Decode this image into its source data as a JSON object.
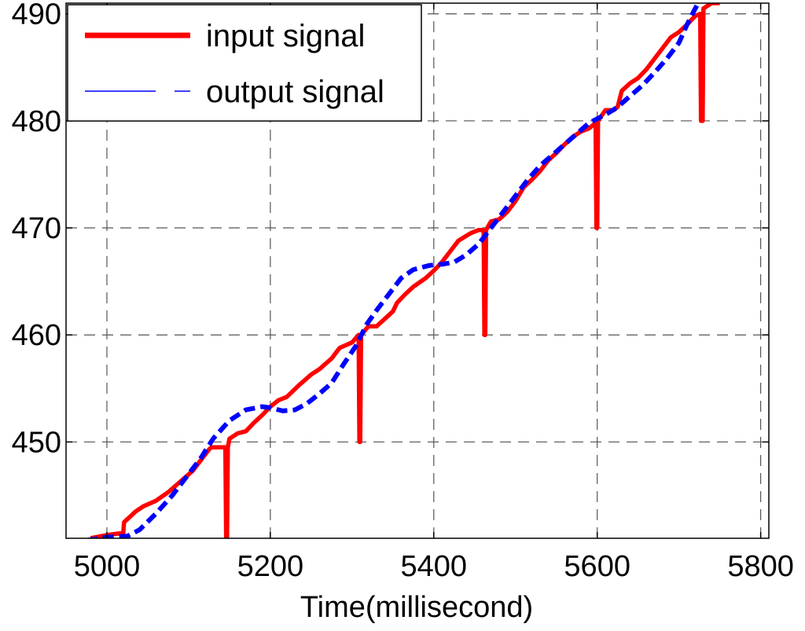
{
  "chart_data": {
    "type": "line",
    "title": "",
    "xlabel": "Time(millisecond)",
    "ylabel": "",
    "xlim": [
      4950,
      5810
    ],
    "ylim": [
      441,
      491
    ],
    "xticks": [
      5000,
      5200,
      5400,
      5600,
      5800
    ],
    "yticks": [
      450,
      460,
      470,
      480,
      490
    ],
    "grid": true,
    "legend_position": "top-left",
    "series": [
      {
        "name": "input signal",
        "color": "#ff0000",
        "style": "solid",
        "points": [
          [
            4980,
            441.0
          ],
          [
            5000,
            441.3
          ],
          [
            5020,
            441.5
          ],
          [
            5021,
            442.5
          ],
          [
            5035,
            443.5
          ],
          [
            5045,
            444.0
          ],
          [
            5060,
            444.5
          ],
          [
            5075,
            445.3
          ],
          [
            5090,
            446.3
          ],
          [
            5105,
            447.3
          ],
          [
            5115,
            448.3
          ],
          [
            5125,
            449.3
          ],
          [
            5128,
            449.5
          ],
          [
            5145,
            449.5
          ],
          [
            5146,
            441.0
          ],
          [
            5147,
            441.0
          ],
          [
            5148,
            449.5
          ],
          [
            5150,
            450.3
          ],
          [
            5160,
            450.8
          ],
          [
            5170,
            451.0
          ],
          [
            5180,
            451.8
          ],
          [
            5190,
            452.5
          ],
          [
            5200,
            453.3
          ],
          [
            5210,
            453.9
          ],
          [
            5220,
            454.2
          ],
          [
            5235,
            455.3
          ],
          [
            5250,
            456.3
          ],
          [
            5260,
            456.8
          ],
          [
            5275,
            457.8
          ],
          [
            5285,
            458.8
          ],
          [
            5300,
            459.3
          ],
          [
            5308,
            460.0
          ],
          [
            5309,
            450.0
          ],
          [
            5310,
            450.0
          ],
          [
            5311,
            460.0
          ],
          [
            5320,
            460.8
          ],
          [
            5330,
            460.8
          ],
          [
            5340,
            461.5
          ],
          [
            5350,
            462.2
          ],
          [
            5355,
            463.0
          ],
          [
            5365,
            463.8
          ],
          [
            5375,
            464.5
          ],
          [
            5390,
            465.3
          ],
          [
            5400,
            466.0
          ],
          [
            5410,
            466.8
          ],
          [
            5420,
            467.8
          ],
          [
            5430,
            468.8
          ],
          [
            5445,
            469.5
          ],
          [
            5455,
            469.8
          ],
          [
            5461,
            469.8
          ],
          [
            5462,
            460.0
          ],
          [
            5463,
            460.0
          ],
          [
            5464,
            469.8
          ],
          [
            5470,
            470.6
          ],
          [
            5480,
            470.8
          ],
          [
            5490,
            471.5
          ],
          [
            5500,
            472.5
          ],
          [
            5510,
            473.8
          ],
          [
            5520,
            474.5
          ],
          [
            5530,
            475.3
          ],
          [
            5540,
            476.3
          ],
          [
            5550,
            477.0
          ],
          [
            5560,
            477.8
          ],
          [
            5570,
            478.5
          ],
          [
            5580,
            479.0
          ],
          [
            5590,
            479.3
          ],
          [
            5598,
            479.8
          ],
          [
            5599,
            470.0
          ],
          [
            5600,
            470.0
          ],
          [
            5601,
            480.0
          ],
          [
            5610,
            481.0
          ],
          [
            5620,
            481.0
          ],
          [
            5625,
            481.3
          ],
          [
            5630,
            482.8
          ],
          [
            5640,
            483.5
          ],
          [
            5650,
            484.0
          ],
          [
            5660,
            484.8
          ],
          [
            5670,
            485.8
          ],
          [
            5680,
            486.8
          ],
          [
            5690,
            487.8
          ],
          [
            5700,
            488.3
          ],
          [
            5710,
            489.0
          ],
          [
            5720,
            489.8
          ],
          [
            5726,
            490.0
          ],
          [
            5727,
            480.0
          ],
          [
            5729,
            480.0
          ],
          [
            5730,
            490.5
          ],
          [
            5740,
            491.0
          ],
          [
            5750,
            491.0
          ]
        ]
      },
      {
        "name": "output signal",
        "color": "#0000ff",
        "style": "dashed",
        "points": [
          [
            4975,
            440.8
          ],
          [
            5000,
            441.1
          ],
          [
            5025,
            441.2
          ],
          [
            5040,
            441.8
          ],
          [
            5060,
            443.3
          ],
          [
            5080,
            445.0
          ],
          [
            5100,
            447.0
          ],
          [
            5115,
            448.5
          ],
          [
            5130,
            450.3
          ],
          [
            5150,
            452.0
          ],
          [
            5170,
            453.0
          ],
          [
            5190,
            453.3
          ],
          [
            5200,
            453.2
          ],
          [
            5215,
            452.9
          ],
          [
            5230,
            453.0
          ],
          [
            5245,
            453.6
          ],
          [
            5260,
            454.5
          ],
          [
            5275,
            455.5
          ],
          [
            5290,
            457.3
          ],
          [
            5305,
            459.0
          ],
          [
            5318,
            461.0
          ],
          [
            5330,
            462.3
          ],
          [
            5345,
            463.8
          ],
          [
            5360,
            465.3
          ],
          [
            5375,
            466.1
          ],
          [
            5395,
            466.5
          ],
          [
            5410,
            466.6
          ],
          [
            5425,
            466.8
          ],
          [
            5440,
            467.5
          ],
          [
            5455,
            468.5
          ],
          [
            5470,
            470.0
          ],
          [
            5485,
            471.5
          ],
          [
            5500,
            473.0
          ],
          [
            5515,
            474.5
          ],
          [
            5530,
            475.8
          ],
          [
            5545,
            476.8
          ],
          [
            5560,
            477.8
          ],
          [
            5575,
            478.8
          ],
          [
            5590,
            479.8
          ],
          [
            5600,
            480.2
          ],
          [
            5615,
            480.8
          ],
          [
            5625,
            481.3
          ],
          [
            5640,
            482.3
          ],
          [
            5655,
            483.3
          ],
          [
            5670,
            484.5
          ],
          [
            5685,
            485.8
          ],
          [
            5700,
            487.3
          ],
          [
            5710,
            489.0
          ],
          [
            5720,
            490.5
          ],
          [
            5725,
            491.2
          ]
        ]
      }
    ]
  }
}
